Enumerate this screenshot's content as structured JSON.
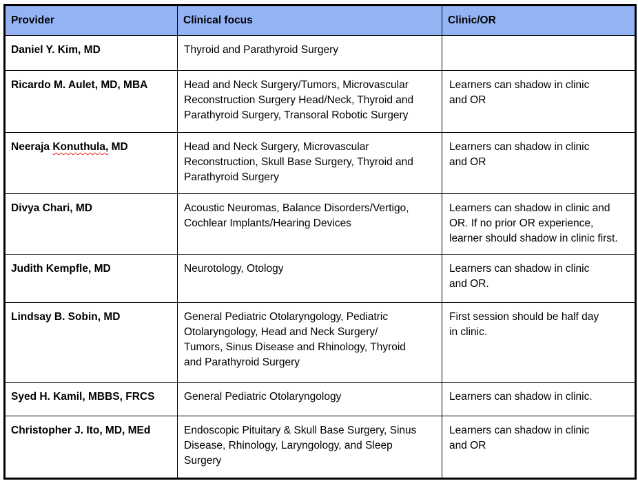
{
  "document": {
    "table": {
      "columns": [
        "Provider",
        "Clinical focus",
        "Clinic/OR"
      ],
      "rows": [
        {
          "provider": "Daniel Y. Kim, MD",
          "clinical_focus": "Thyroid and Parathyroid Surgery",
          "clinic_or": ""
        },
        {
          "provider": "Ricardo M. Aulet, MD, MBA",
          "clinical_focus": "Head and Neck Surgery/Tumors, Microvascular\nReconstruction Surgery Head/Neck, Thyroid and\nParathyroid Surgery, Transoral Robotic Surgery",
          "clinic_or": "Learners can shadow in clinic\nand OR"
        },
        {
          "provider": "Neeraja Konuthula, MD",
          "misspelled_word": "Konuthula,",
          "clinical_focus": "Head and Neck Surgery, Microvascular\nReconstruction, Skull Base Surgery, Thyroid and\nParathyroid Surgery",
          "clinic_or": "Learners can shadow in clinic\nand OR"
        },
        {
          "provider": "Divya Chari, MD",
          "clinical_focus": "Acoustic Neuromas, Balance Disorders/Vertigo,\nCochlear Implants/Hearing Devices",
          "clinic_or": "Learners can shadow in clinic and\nOR. If no prior OR experience,\nlearner should shadow in clinic first."
        },
        {
          "provider": "Judith Kempfle, MD",
          "clinical_focus": "Neurotology, Otology",
          "clinic_or": "Learners can shadow in clinic\nand OR."
        },
        {
          "provider": "Lindsay B. Sobin, MD",
          "clinical_focus": "General Pediatric Otolaryngology, Pediatric\nOtolaryngology, Head and Neck Surgery/\nTumors, Sinus Disease and Rhinology, Thyroid\nand Parathyroid Surgery",
          "clinic_or": "First session should be half day\nin clinic."
        },
        {
          "provider": "Syed H. Kamil, MBBS, FRCS",
          "clinical_focus": "General Pediatric Otolaryngology",
          "clinic_or": "Learners can shadow in clinic."
        },
        {
          "provider": "Christopher J. Ito, MD, MEd",
          "clinical_focus": "Endoscopic Pituitary & Skull Base Surgery, Sinus\nDisease, Rhinology, Laryngology, and Sleep\nSurgery",
          "clinic_or": "Learners can shadow in clinic\nand OR"
        }
      ]
    },
    "colors": {
      "header_background": "#94B3F4",
      "border": "#000000",
      "text": "#000000",
      "spellcheck_underline": "#E3261C",
      "page_background": "#FFFFFF"
    }
  }
}
